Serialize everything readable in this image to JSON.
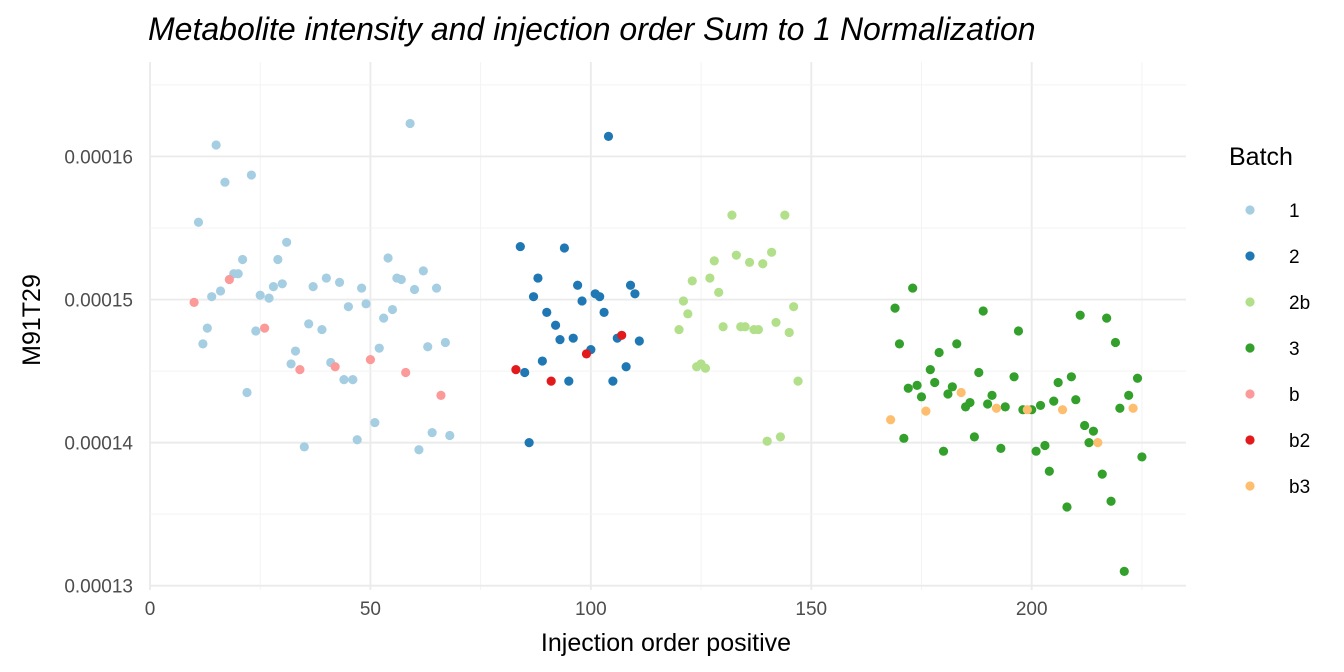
{
  "chart_data": {
    "type": "scatter",
    "title": "Metabolite intensity and injection order Sum to 1 Normalization",
    "xlabel": "Injection order positive",
    "ylabel": "M91T29",
    "xlim": [
      0,
      235
    ],
    "ylim": [
      0.0001297,
      0.0001666
    ],
    "x_ticks": [
      0,
      50,
      100,
      150,
      200
    ],
    "x_tick_labels": [
      "0",
      "50",
      "100",
      "150",
      "200"
    ],
    "y_ticks": [
      0.00013,
      0.00014,
      0.00015,
      0.00016
    ],
    "y_tick_labels": [
      "0.00013",
      "0.00014",
      "0.00015",
      "0.00016"
    ],
    "grid": true,
    "legend": {
      "title": "Batch",
      "position": "right"
    },
    "series": [
      {
        "name": "1",
        "color": "#a6cee3",
        "points": [
          [
            11,
            0.0001554
          ],
          [
            12,
            0.0001469
          ],
          [
            13,
            0.000148
          ],
          [
            14,
            0.0001502
          ],
          [
            15,
            0.0001608
          ],
          [
            16,
            0.0001506
          ],
          [
            17,
            0.0001582
          ],
          [
            19,
            0.0001518
          ],
          [
            20,
            0.0001518
          ],
          [
            21,
            0.0001528
          ],
          [
            22,
            0.0001435
          ],
          [
            23,
            0.0001587
          ],
          [
            24,
            0.0001478
          ],
          [
            25,
            0.0001503
          ],
          [
            27,
            0.0001501
          ],
          [
            28,
            0.0001509
          ],
          [
            29,
            0.0001528
          ],
          [
            30,
            0.0001511
          ],
          [
            31,
            0.000154
          ],
          [
            32,
            0.0001455
          ],
          [
            33,
            0.0001464
          ],
          [
            35,
            0.0001397
          ],
          [
            36,
            0.0001483
          ],
          [
            37,
            0.0001509
          ],
          [
            39,
            0.0001479
          ],
          [
            40,
            0.0001515
          ],
          [
            41,
            0.0001456
          ],
          [
            43,
            0.0001512
          ],
          [
            44,
            0.0001444
          ],
          [
            45,
            0.0001495
          ],
          [
            46,
            0.0001444
          ],
          [
            47,
            0.0001402
          ],
          [
            48,
            0.0001508
          ],
          [
            49,
            0.0001497
          ],
          [
            51,
            0.0001414
          ],
          [
            52,
            0.0001466
          ],
          [
            53,
            0.0001487
          ],
          [
            54,
            0.0001529
          ],
          [
            55,
            0.0001493
          ],
          [
            56,
            0.0001515
          ],
          [
            57,
            0.0001514
          ],
          [
            59,
            0.0001623
          ],
          [
            60,
            0.0001507
          ],
          [
            61,
            0.0001395
          ],
          [
            62,
            0.000152
          ],
          [
            63,
            0.0001467
          ],
          [
            64,
            0.0001407
          ],
          [
            65,
            0.0001508
          ],
          [
            67,
            0.000147
          ],
          [
            68,
            0.0001405
          ]
        ]
      },
      {
        "name": "2",
        "color": "#1f78b4",
        "points": [
          [
            84,
            0.0001537
          ],
          [
            85,
            0.0001449
          ],
          [
            86,
            0.00014
          ],
          [
            87,
            0.0001502
          ],
          [
            88,
            0.0001515
          ],
          [
            89,
            0.0001457
          ],
          [
            90,
            0.0001491
          ],
          [
            92,
            0.0001482
          ],
          [
            93,
            0.0001472
          ],
          [
            94,
            0.0001536
          ],
          [
            95,
            0.0001443
          ],
          [
            96,
            0.0001473
          ],
          [
            97,
            0.000151
          ],
          [
            98,
            0.0001499
          ],
          [
            100,
            0.0001465
          ],
          [
            101,
            0.0001504
          ],
          [
            102,
            0.0001502
          ],
          [
            103,
            0.0001491
          ],
          [
            104,
            0.0001614
          ],
          [
            105,
            0.0001443
          ],
          [
            106,
            0.0001473
          ],
          [
            108,
            0.0001453
          ],
          [
            109,
            0.000151
          ],
          [
            110,
            0.0001504
          ],
          [
            111,
            0.0001471
          ]
        ]
      },
      {
        "name": "2b",
        "color": "#b2df8a",
        "points": [
          [
            120,
            0.0001479
          ],
          [
            121,
            0.0001499
          ],
          [
            122,
            0.000149
          ],
          [
            123,
            0.0001513
          ],
          [
            124,
            0.0001453
          ],
          [
            125,
            0.0001455
          ],
          [
            126,
            0.0001452
          ],
          [
            127,
            0.0001515
          ],
          [
            128,
            0.0001527
          ],
          [
            129,
            0.0001505
          ],
          [
            130,
            0.0001481
          ],
          [
            132,
            0.0001559
          ],
          [
            133,
            0.0001531
          ],
          [
            134,
            0.0001481
          ],
          [
            135,
            0.0001481
          ],
          [
            136,
            0.0001526
          ],
          [
            137,
            0.0001479
          ],
          [
            138,
            0.0001479
          ],
          [
            139,
            0.0001525
          ],
          [
            140,
            0.0001401
          ],
          [
            141,
            0.0001533
          ],
          [
            142,
            0.0001484
          ],
          [
            143,
            0.0001404
          ],
          [
            144,
            0.0001559
          ],
          [
            145,
            0.0001477
          ],
          [
            146,
            0.0001495
          ],
          [
            147,
            0.0001443
          ]
        ]
      },
      {
        "name": "3",
        "color": "#33a02c",
        "points": [
          [
            169,
            0.0001494
          ],
          [
            170,
            0.0001469
          ],
          [
            171,
            0.0001403
          ],
          [
            172,
            0.0001438
          ],
          [
            173,
            0.0001508
          ],
          [
            174,
            0.000144
          ],
          [
            175,
            0.0001432
          ],
          [
            177,
            0.0001451
          ],
          [
            178,
            0.0001442
          ],
          [
            179,
            0.0001463
          ],
          [
            180,
            0.0001394
          ],
          [
            181,
            0.0001434
          ],
          [
            182,
            0.0001439
          ],
          [
            183,
            0.0001469
          ],
          [
            185,
            0.0001425
          ],
          [
            186,
            0.0001428
          ],
          [
            187,
            0.0001404
          ],
          [
            188,
            0.0001449
          ],
          [
            189,
            0.0001492
          ],
          [
            190,
            0.0001427
          ],
          [
            191,
            0.0001433
          ],
          [
            193,
            0.0001396
          ],
          [
            194,
            0.0001425
          ],
          [
            196,
            0.0001446
          ],
          [
            197,
            0.0001478
          ],
          [
            198,
            0.0001423
          ],
          [
            200,
            0.0001423
          ],
          [
            201,
            0.0001394
          ],
          [
            202,
            0.0001426
          ],
          [
            203,
            0.0001398
          ],
          [
            204,
            0.000138
          ],
          [
            205,
            0.0001429
          ],
          [
            206,
            0.0001442
          ],
          [
            208,
            0.0001355
          ],
          [
            209,
            0.0001446
          ],
          [
            210,
            0.000143
          ],
          [
            211,
            0.0001489
          ],
          [
            212,
            0.0001412
          ],
          [
            213,
            0.00014
          ],
          [
            214,
            0.0001408
          ],
          [
            216,
            0.0001378
          ],
          [
            217,
            0.0001487
          ],
          [
            218,
            0.0001359
          ],
          [
            219,
            0.000147
          ],
          [
            220,
            0.0001424
          ],
          [
            221,
            0.000131
          ],
          [
            222,
            0.0001433
          ],
          [
            224,
            0.0001445
          ],
          [
            225,
            0.000139
          ]
        ]
      },
      {
        "name": "b",
        "color": "#fb9a99",
        "points": [
          [
            10,
            0.0001498
          ],
          [
            18,
            0.0001514
          ],
          [
            26,
            0.000148
          ],
          [
            34,
            0.0001451
          ],
          [
            42,
            0.0001453
          ],
          [
            50,
            0.0001458
          ],
          [
            58,
            0.0001449
          ],
          [
            66,
            0.0001433
          ]
        ]
      },
      {
        "name": "b2",
        "color": "#e31a1c",
        "points": [
          [
            83,
            0.0001451
          ],
          [
            91,
            0.0001443
          ],
          [
            99,
            0.0001462
          ],
          [
            107,
            0.0001475
          ]
        ]
      },
      {
        "name": "b3",
        "color": "#fdbf6f",
        "points": [
          [
            168,
            0.0001416
          ],
          [
            176,
            0.0001422
          ],
          [
            184,
            0.0001435
          ],
          [
            192,
            0.0001424
          ],
          [
            199,
            0.0001423
          ],
          [
            207,
            0.0001423
          ],
          [
            215,
            0.00014
          ],
          [
            223,
            0.0001424
          ]
        ]
      }
    ]
  }
}
